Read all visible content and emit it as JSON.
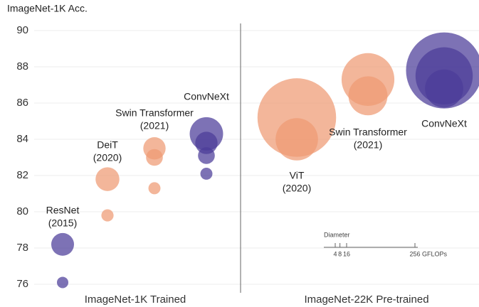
{
  "chart_data": {
    "type": "bubble",
    "y_label": "ImageNet-1K Acc.",
    "ylim": [
      76,
      90
    ],
    "yticks": [
      76,
      78,
      80,
      82,
      84,
      86,
      88,
      90
    ],
    "grid": true,
    "size_unit": "GFLOPs",
    "panels": [
      {
        "name": "ImageNet-1K Trained",
        "groups": [
          {
            "label": [
              "ResNet",
              "(2015)"
            ],
            "color": "#4b3c98",
            "values": [
              78.2,
              76.1
            ],
            "sizes": [
              16,
              4
            ]
          },
          {
            "label": [
              "DeiT",
              "(2020)"
            ],
            "color": "#ef9a73",
            "values": [
              81.8,
              79.8
            ],
            "sizes": [
              17.5,
              4.6
            ]
          },
          {
            "label": [
              "Swin Transformer",
              "(2021)"
            ],
            "color": "#ef9a73",
            "values": [
              83.5,
              83.0,
              81.3
            ],
            "sizes": [
              15.4,
              8.7,
              4.5
            ]
          },
          {
            "label": [
              "ConvNeXt"
            ],
            "color": "#4b3c98",
            "values": [
              84.3,
              83.8,
              83.1,
              82.1
            ],
            "sizes": [
              34.4,
              15.4,
              8.7,
              4.5
            ]
          }
        ]
      },
      {
        "name": "ImageNet-22K Pre-trained",
        "groups": [
          {
            "label": [
              "ViT",
              "(2020)"
            ],
            "color": "#ef9a73",
            "values": [
              85.2,
              84.0
            ],
            "sizes": [
              190.7,
              55.5
            ]
          },
          {
            "label": [
              "Swin Transformer",
              "(2021)"
            ],
            "color": "#ef9a73",
            "values": [
              87.3,
              86.4
            ],
            "sizes": [
              86,
              47
            ]
          },
          {
            "label": [
              "ConvNeXt"
            ],
            "color": "#4b3c98",
            "values": [
              87.8,
              87.5,
              86.8
            ],
            "sizes": [
              179,
              101,
              45.1
            ]
          }
        ]
      }
    ],
    "size_legend": {
      "title": "Diameter",
      "ticks": [
        4,
        8,
        16,
        256
      ],
      "unit": "GFLOPs"
    }
  }
}
